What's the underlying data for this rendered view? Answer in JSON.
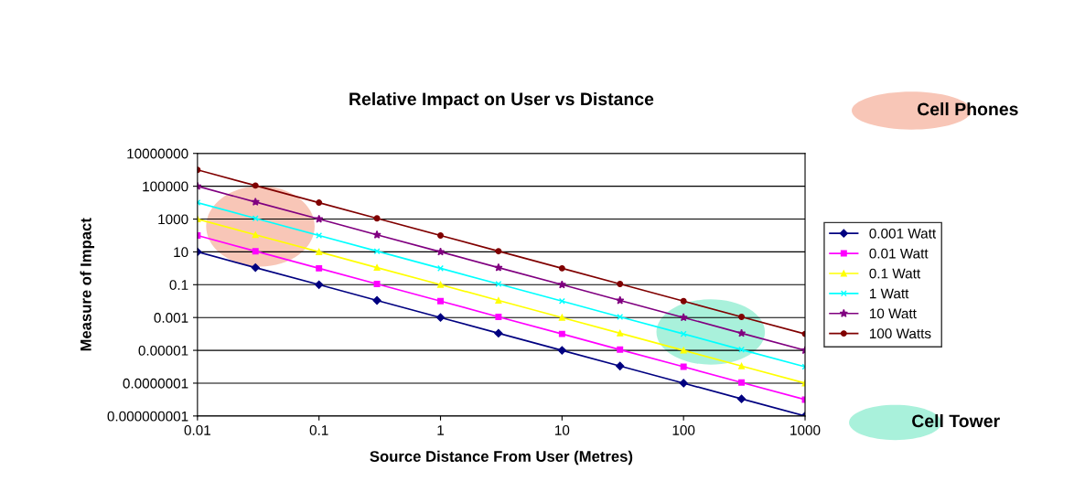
{
  "chart_data": {
    "type": "line",
    "title": "Relative Impact on User vs Distance",
    "xlabel": "Source Distance From User (Metres)",
    "ylabel": "Measure of Impact",
    "x": [
      0.01,
      0.03,
      0.1,
      0.3,
      1,
      3,
      10,
      30,
      100,
      300,
      1000
    ],
    "series": [
      {
        "name": "0.001 Watt",
        "color": "#000080",
        "marker": "diamond",
        "values": [
          10,
          1.1,
          0.1,
          0.011,
          0.001,
          0.00011,
          1e-05,
          1.1e-06,
          1e-07,
          1.1e-08,
          1e-09
        ]
      },
      {
        "name": "0.01 Watt",
        "color": "#ff00ff",
        "marker": "square",
        "values": [
          100,
          11,
          1,
          0.11,
          0.01,
          0.0011,
          0.0001,
          1.1e-05,
          1e-06,
          1.1e-07,
          1e-08
        ]
      },
      {
        "name": "0.1 Watt",
        "color": "#ffff00",
        "marker": "triangle",
        "values": [
          1000,
          110,
          10,
          1.1,
          0.1,
          0.011,
          0.001,
          0.00011,
          1e-05,
          1.1e-06,
          1e-07
        ]
      },
      {
        "name": "1 Watt",
        "color": "#00ffff",
        "marker": "cross",
        "values": [
          10000,
          1100,
          100,
          11,
          1,
          0.11,
          0.01,
          0.0011,
          0.0001,
          1.1e-05,
          1e-06
        ]
      },
      {
        "name": "10 Watt",
        "color": "#800080",
        "marker": "star",
        "values": [
          100000,
          11000,
          1000,
          110,
          10,
          1.1,
          0.1,
          0.011,
          0.001,
          0.00011,
          1e-05
        ]
      },
      {
        "name": "100 Watts",
        "color": "#800000",
        "marker": "circle",
        "values": [
          1000000,
          110000,
          10000,
          1100,
          100,
          11,
          1,
          0.11,
          0.01,
          0.0011,
          0.0001
        ]
      }
    ],
    "log": "xy",
    "xlim": [
      0.01,
      1000
    ],
    "xticks": [
      0.01,
      0.1,
      1,
      10,
      100,
      1000
    ],
    "ylim": [
      1e-09,
      10000000
    ],
    "yticks": [
      {
        "value": 1e-09,
        "label": "0.000000001"
      },
      {
        "value": 1e-07,
        "label": "0.0000001"
      },
      {
        "value": 1e-05,
        "label": "0.00001"
      },
      {
        "value": 0.001,
        "label": "0.001"
      },
      {
        "value": 0.1,
        "label": "0.1"
      },
      {
        "value": 10,
        "label": "10"
      },
      {
        "value": 1000,
        "label": "1000"
      },
      {
        "value": 100000,
        "label": "100000"
      },
      {
        "value": 10000000,
        "label": "10000000"
      }
    ],
    "grid": "y",
    "legend": "right",
    "line_style": "solid",
    "annotations": [
      "Cell Phones",
      "Cell Tower"
    ]
  }
}
